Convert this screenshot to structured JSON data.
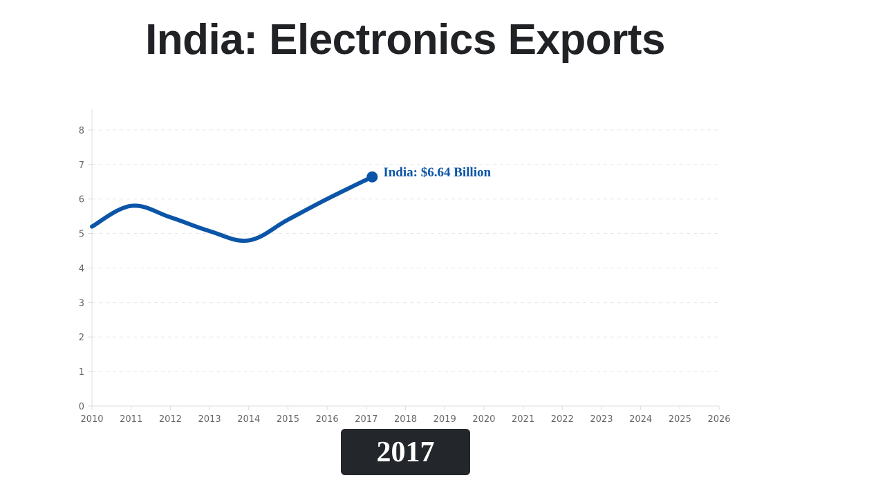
{
  "chart_data": {
    "type": "line",
    "title": "India: Electronics Exports",
    "xlabel": "",
    "ylabel": "",
    "xlim": [
      2010,
      2026
    ],
    "ylim": [
      0,
      8
    ],
    "x_ticks": [
      2010,
      2011,
      2012,
      2013,
      2014,
      2015,
      2016,
      2017,
      2018,
      2019,
      2020,
      2021,
      2022,
      2023,
      2024,
      2025,
      2026
    ],
    "y_ticks": [
      0,
      1,
      2,
      3,
      4,
      5,
      6,
      7,
      8
    ],
    "grid": true,
    "series": [
      {
        "name": "India",
        "color": "#0b55a8",
        "x": [
          2010,
          2011,
          2012,
          2013,
          2014,
          2015,
          2016,
          2017.15
        ],
        "values": [
          5.2,
          5.8,
          5.47,
          5.07,
          4.8,
          5.4,
          6.0,
          6.64
        ]
      }
    ],
    "end_label": "India: $6.64 Billion",
    "current_year": "2017"
  }
}
